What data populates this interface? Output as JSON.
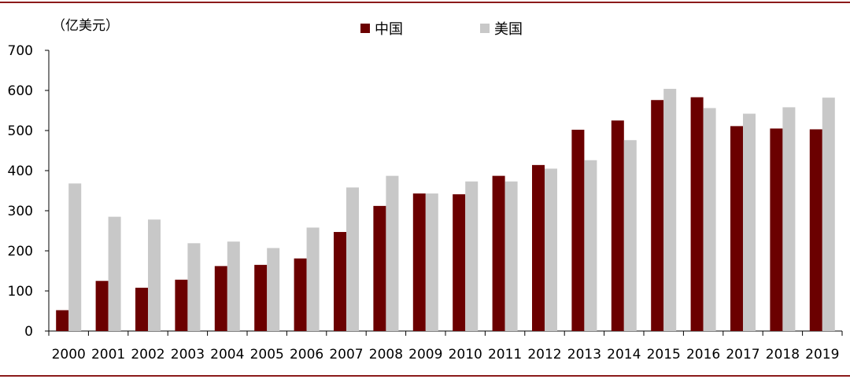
{
  "chart_data": {
    "type": "bar",
    "unit_label": "（亿美元）",
    "categories": [
      "2000",
      "2001",
      "2002",
      "2003",
      "2004",
      "2005",
      "2006",
      "2007",
      "2008",
      "2009",
      "2010",
      "2011",
      "2012",
      "2013",
      "2014",
      "2015",
      "2016",
      "2017",
      "2018",
      "2019"
    ],
    "series": [
      {
        "name": "中国",
        "color": "#6b0000",
        "values": [
          52,
          125,
          108,
          128,
          162,
          165,
          181,
          247,
          312,
          343,
          341,
          387,
          414,
          502,
          525,
          576,
          583,
          511,
          505,
          503
        ]
      },
      {
        "name": "美国",
        "color": "#c8c8c8",
        "values": [
          368,
          285,
          278,
          219,
          223,
          207,
          258,
          358,
          387,
          343,
          373,
          373,
          405,
          426,
          476,
          604,
          556,
          542,
          558,
          582
        ]
      }
    ],
    "ylim": [
      0,
      700
    ],
    "yticks": [
      0,
      100,
      200,
      300,
      400,
      500,
      600,
      700
    ],
    "legend_position": "top-center",
    "grid": false
  }
}
